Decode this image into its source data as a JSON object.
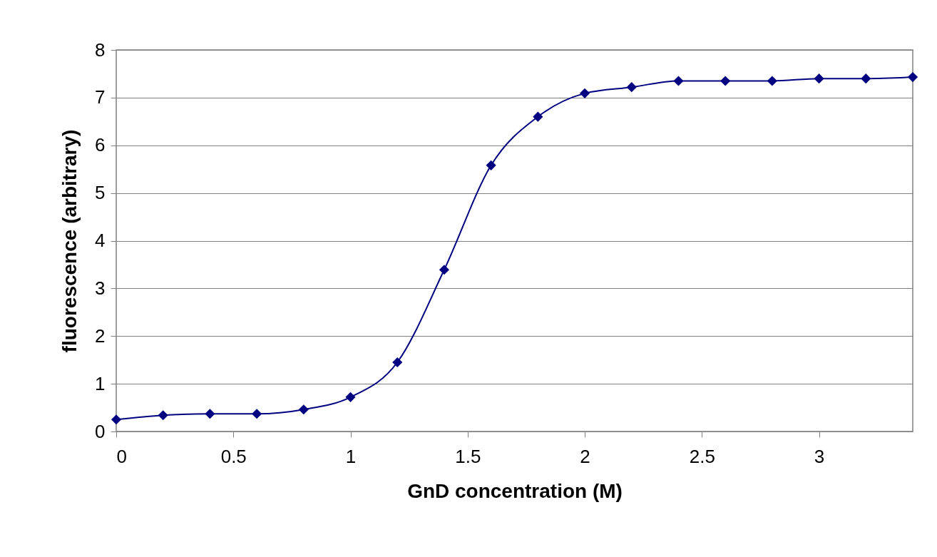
{
  "chart_data": {
    "type": "line",
    "xlabel": "GnD concentration (M)",
    "ylabel": "fluorescence (arbitrary)",
    "x": [
      0,
      0.2,
      0.4,
      0.6,
      0.8,
      1.0,
      1.2,
      1.4,
      1.6,
      1.8,
      2.0,
      2.2,
      2.4,
      2.6,
      2.8,
      3.0,
      3.2,
      3.4
    ],
    "series": [
      {
        "color": "#000080",
        "values": [
          0.25,
          0.34,
          0.37,
          0.37,
          0.46,
          0.72,
          1.45,
          3.39,
          5.58,
          6.6,
          7.09,
          7.22,
          7.35,
          7.35,
          7.35,
          7.4,
          7.4,
          7.43
        ]
      }
    ],
    "xlim": [
      0,
      3.4
    ],
    "xticks": [
      0,
      0.5,
      1,
      1.5,
      2,
      2.5,
      3
    ],
    "ylim": [
      0,
      8
    ],
    "yticks": [
      0,
      1,
      2,
      3,
      4,
      5,
      6,
      7,
      8
    ],
    "grid": "y",
    "marker": "diamond",
    "line_style": "solid"
  }
}
